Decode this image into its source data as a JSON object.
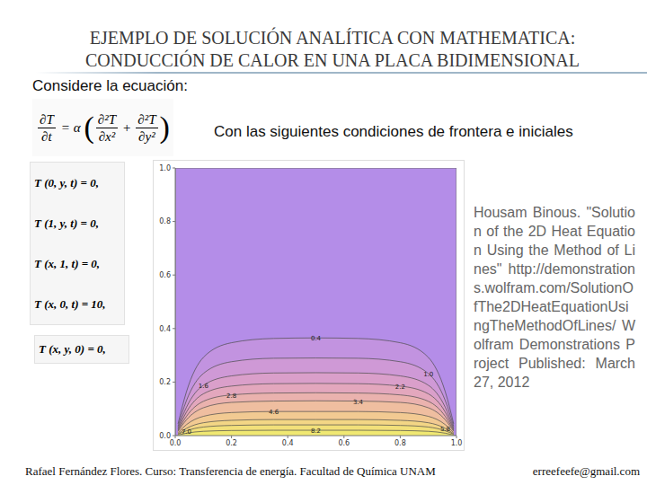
{
  "title": [
    "EJEMPLO DE SOLUCIÓN ANALÍTICA CON MATHEMATICA:",
    "CONDUCCIÓN DE CALOR EN UNA PLACA BIDIMENSIONAL"
  ],
  "intro": "Considere la ecuación:",
  "equation": {
    "lhs_num": "∂T",
    "lhs_den": "∂t",
    "equals": "= α",
    "terms": [
      {
        "num": "∂²T",
        "den": "∂x²"
      },
      {
        "num": "∂²T",
        "den": "∂y²"
      }
    ],
    "plus": "+"
  },
  "conditions_label": "Con las siguientes condiciones de frontera e iniciales",
  "boundary_conditions": [
    "T (0, y, t) = 0,",
    "T (1, y, t) = 0,",
    "T (x, 1, t) = 0,",
    "T (x, 0, t) = 10,"
  ],
  "initial_condition": "T (x, y, 0) = 0,",
  "citation": "Housam Binous. \"Solution of the 2D Heat Equation Using the Method of Lines\" http://demonstrations.wolfram.com/SolutionOfThe2DHeatEquationUsingTheMethodOfLines/ Wolfram Demonstrations Project Published: March 27, 2012",
  "footer": {
    "left": "Rafael Fernández Flores. Curso: Transferencia de energía. Facultad de Química UNAM",
    "right": "erreefeefe@gmail.com"
  },
  "chart_data": {
    "type": "contour",
    "color": "#b48de8",
    "xlim": [
      0,
      1
    ],
    "ylim": [
      0,
      1
    ],
    "xticks": [
      {
        "value": 0,
        "label": "0.0"
      },
      {
        "value": 0.2,
        "label": "0.2"
      },
      {
        "value": 0.4,
        "label": "0.4"
      },
      {
        "value": 0.6,
        "label": "0.6"
      },
      {
        "value": 0.8,
        "label": "0.8"
      },
      {
        "value": 1,
        "label": "1.0"
      }
    ],
    "yticks": [
      {
        "value": 0,
        "label": "0.0"
      },
      {
        "value": 0.2,
        "label": "0.2"
      },
      {
        "value": 0.4,
        "label": "0.4"
      },
      {
        "value": 0.6,
        "label": "0.6"
      },
      {
        "value": 0.8,
        "label": "0.8"
      },
      {
        "value": 1,
        "label": "1.0"
      }
    ],
    "x": [
      0.01,
      0.04,
      0.1,
      0.2,
      0.35,
      0.5,
      0.65,
      0.8,
      0.9,
      0.96,
      0.99
    ],
    "series": [
      {
        "name": "0.4",
        "color": "#c293e0",
        "values": [
          0.044,
          0.164,
          0.292,
          0.347,
          0.363,
          0.365,
          0.363,
          0.347,
          0.292,
          0.164,
          0.044
        ]
      },
      {
        "name": "1.0",
        "color": "#cf99d6",
        "values": [
          0.035,
          0.131,
          0.232,
          0.276,
          0.289,
          0.29,
          0.289,
          0.276,
          0.232,
          0.131,
          0.035
        ]
      },
      {
        "name": "1.6",
        "color": "#da9fca",
        "values": [
          0.028,
          0.106,
          0.188,
          0.223,
          0.234,
          0.235,
          0.234,
          0.223,
          0.188,
          0.106,
          0.028
        ]
      },
      {
        "name": "2.2",
        "color": "#e3a7bd",
        "values": [
          0.023,
          0.088,
          0.156,
          0.185,
          0.194,
          0.195,
          0.194,
          0.185,
          0.156,
          0.088,
          0.023
        ]
      },
      {
        "name": "2.8",
        "color": "#eab2ae",
        "values": [
          0.019,
          0.072,
          0.128,
          0.152,
          0.159,
          0.16,
          0.159,
          0.152,
          0.128,
          0.072,
          0.019
        ]
      },
      {
        "name": "3.4",
        "color": "#efbea0",
        "values": [
          0.016,
          0.059,
          0.104,
          0.124,
          0.129,
          0.13,
          0.129,
          0.124,
          0.104,
          0.059,
          0.016
        ]
      },
      {
        "name": "4.6",
        "color": "#f2ca92",
        "values": [
          0.011,
          0.041,
          0.072,
          0.086,
          0.09,
          0.09,
          0.09,
          0.086,
          0.072,
          0.041,
          0.011
        ]
      },
      {
        "name": "5.8",
        "color": "#f3d685",
        "values": [
          0.007,
          0.027,
          0.048,
          0.057,
          0.06,
          0.06,
          0.06,
          0.057,
          0.048,
          0.027,
          0.007
        ]
      },
      {
        "name": "7.0",
        "color": "#f2e07a",
        "values": [
          0.005,
          0.018,
          0.032,
          0.038,
          0.04,
          0.04,
          0.04,
          0.038,
          0.032,
          0.018,
          0.005
        ]
      },
      {
        "name": "8.2",
        "color": "#f0e872",
        "values": [
          0.002,
          0.009,
          0.016,
          0.019,
          0.02,
          0.02,
          0.02,
          0.019,
          0.016,
          0.009,
          0.002
        ]
      }
    ]
  }
}
